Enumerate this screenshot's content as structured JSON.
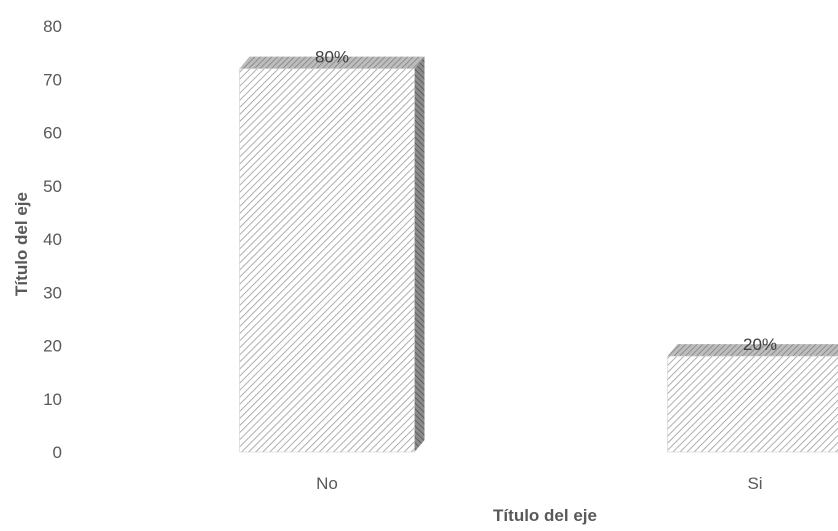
{
  "chart_data": {
    "type": "bar",
    "style": "3d-column",
    "categories": [
      "No",
      "Si"
    ],
    "values": [
      72,
      18
    ],
    "data_labels": [
      "80%",
      "20%"
    ],
    "yticks": [
      0,
      10,
      20,
      30,
      40,
      50,
      60,
      70,
      80
    ],
    "ylim": [
      0,
      80
    ],
    "xlabel": "Título del eje",
    "ylabel": "Título del eje",
    "grid": false,
    "legend": "none",
    "colors": {
      "front_pattern": "#d9d9d9",
      "top_face": "#a6a6a6",
      "side_face": "#7f7f7f",
      "text": "#595959"
    }
  }
}
